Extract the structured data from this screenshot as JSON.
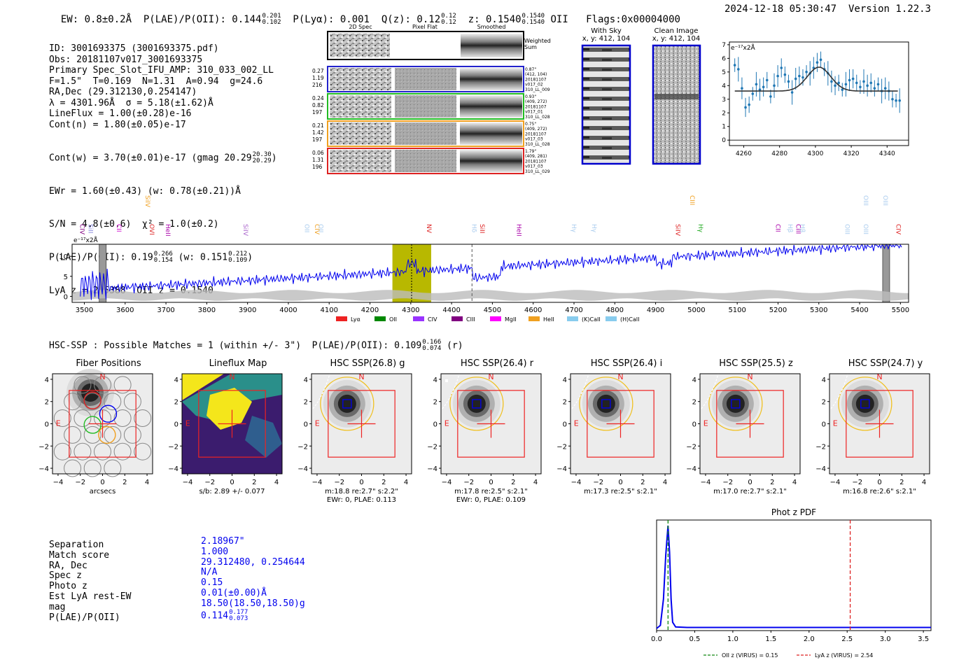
{
  "header": {
    "ew": "EW: 0.8±0.2Å",
    "plae_label": "P(LAE)/P(OII): 0.144",
    "plae_hi": "0.201",
    "plae_lo": "0.102",
    "plya": "P(Lyα): 0.001",
    "qz_label": "Q(z): 0.12",
    "qz_hi": "0.12",
    "qz_lo": "0.12",
    "z_label": "z: 0.1540",
    "z_hi": "0.1540",
    "z_lo": "0.1540",
    "z_line": "OII",
    "flags": "Flags:0x00004000",
    "timestamp": "2024-12-18 05:30:47",
    "version": "Version 1.22.3"
  },
  "info": {
    "lines": [
      "ID: 3001693375 (3001693375.pdf)",
      "Obs: 20181107v017_3001693375",
      "Primary Spec_Slot_IFU_AMP: 310_033_002_LL",
      "F=1.5\"  T=0.169  N=1.31  A=0.94  g=24.6",
      "RA,Dec (29.312130,0.254147)",
      "λ = 4301.96Å  σ = 5.18(±1.62)Å",
      "LineFlux = 1.00(±0.28)e-16",
      "Cont(n) = 1.80(±0.05)e-17"
    ],
    "contw_label": "Cont(w) = 3.70(±0.01)e-17 (gmag 20.29",
    "contw_hi": "20.30",
    "contw_lo": "20.29",
    "ewr": "EWr = 1.60(±0.43) (w: 0.78(±0.21))Å",
    "sn": "S/N = 4.8(±0.6)  χ² = 1.0(±0.2)",
    "plae_label": "P(LAE)/P(OII): 0.19",
    "plae_hi": "0.266",
    "plae_lo": "0.154",
    "plae_w": "(w: 0.151",
    "plae_w_hi": "0.212",
    "plae_w_lo": "0.109",
    "lya": "LyA z = 2.5388  OII z = 0.1540"
  },
  "cutouts": {
    "col_2d": "2D Spec",
    "col_flat": "Pixel Flat",
    "col_smooth": "Smoothed",
    "weighted": "Weighted Sum",
    "rows": [
      {
        "left": [
          "0.27",
          "1.19",
          "216"
        ],
        "right": [
          "0.87\"",
          "(412, 104)",
          "20181107",
          "v017_02",
          "310_LL_009"
        ],
        "color": "#2222cc"
      },
      {
        "left": [
          "0.24",
          "0.82",
          "197"
        ],
        "right": [
          "0.93\"",
          "(409, 272)",
          "20181107",
          "v017_01",
          "310_LL_028"
        ],
        "color": "#22bb22"
      },
      {
        "left": [
          "0.21",
          "1.42",
          "197"
        ],
        "right": [
          "0.75\"",
          "(409, 272)",
          "20181107",
          "v017_03",
          "310_LL_028"
        ],
        "color": "#f0a020"
      },
      {
        "left": [
          "0.06",
          "1.31",
          "196"
        ],
        "right": [
          "1.79\"",
          "(409, 281)",
          "20181107",
          "v017_03",
          "310_LL_029"
        ],
        "color": "#dd2222"
      }
    ]
  },
  "sky": {
    "with_sky": "With Sky",
    "with_sky_xy": "x, y: 412, 104",
    "clean": "Clean Image",
    "clean_xy": "x, y: 412, 104"
  },
  "zoom_plot": {
    "unit": "e⁻¹⁷x2Å",
    "yticks": [
      "0",
      "1",
      "2",
      "3",
      "4",
      "5",
      "6",
      "7"
    ],
    "xticks": [
      "4260",
      "4280",
      "4300",
      "4320",
      "4340"
    ],
    "xmin": 4252,
    "xmax": 4352,
    "ymin": -0.4,
    "ymax": 7.2,
    "points": [
      [
        4255,
        5.5
      ],
      [
        4257,
        5.2
      ],
      [
        4259,
        3.8
      ],
      [
        4261,
        2.4
      ],
      [
        4263,
        2.6
      ],
      [
        4265,
        3.4
      ],
      [
        4267,
        4.1
      ],
      [
        4269,
        3.7
      ],
      [
        4271,
        3.9
      ],
      [
        4273,
        4.4
      ],
      [
        4275,
        3.2
      ],
      [
        4277,
        4.0
      ],
      [
        4279,
        4.7
      ],
      [
        4281,
        5.3
      ],
      [
        4283,
        4.8
      ],
      [
        4285,
        4.3
      ],
      [
        4287,
        3.5
      ],
      [
        4289,
        4.5
      ],
      [
        4291,
        4.7
      ],
      [
        4293,
        4.6
      ],
      [
        4295,
        5.0
      ],
      [
        4297,
        4.9
      ],
      [
        4299,
        5.3
      ],
      [
        4301,
        5.7
      ],
      [
        4303,
        5.9
      ],
      [
        4305,
        5.2
      ],
      [
        4307,
        4.9
      ],
      [
        4309,
        4.3
      ],
      [
        4311,
        4.0
      ],
      [
        4313,
        4.2
      ],
      [
        4315,
        3.7
      ],
      [
        4317,
        4.1
      ],
      [
        4319,
        4.4
      ],
      [
        4321,
        4.5
      ],
      [
        4323,
        4.2
      ],
      [
        4325,
        3.9
      ],
      [
        4327,
        4.3
      ],
      [
        4329,
        4.0
      ],
      [
        4331,
        4.2
      ],
      [
        4333,
        3.8
      ],
      [
        4335,
        4.1
      ],
      [
        4337,
        3.6
      ],
      [
        4339,
        3.8
      ],
      [
        4341,
        3.6
      ],
      [
        4343,
        3.0
      ],
      [
        4345,
        2.9
      ],
      [
        4347,
        2.9
      ]
    ],
    "continuum": 3.6,
    "peak": 1.75,
    "center": 4302,
    "sigma": 5.18,
    "fit_start": 4255,
    "fit_end": 4346
  },
  "full_spectrum": {
    "unit": "e⁻¹⁷x2Å",
    "yticks": [
      "0",
      "5",
      "10"
    ],
    "xticks": [
      "3500",
      "3600",
      "3700",
      "3800",
      "3900",
      "4000",
      "4100",
      "4200",
      "4300",
      "4400",
      "4500",
      "4600",
      "4700",
      "4800",
      "4900",
      "5000",
      "5100",
      "5200",
      "5300",
      "5400",
      "5500"
    ],
    "xmin": 3470,
    "xmax": 5520,
    "ymin": -1.5,
    "ymax": 13,
    "highlight": [
      4255,
      4350
    ],
    "line_center": 4302,
    "dashed_line": 4450,
    "gray_bars": [
      3545,
      5465
    ],
    "line_labels": [
      {
        "w": 3490,
        "t": "CIV",
        "c": "#800080",
        "row": 1
      },
      {
        "w": 3510,
        "t": "SiII",
        "c": "#8888dd",
        "row": 1
      },
      {
        "w": 3580,
        "t": "CII",
        "c": "#cc00cc",
        "row": 1
      },
      {
        "w": 3650,
        "t": "SiIV",
        "c": "#f0a020",
        "row": 0
      },
      {
        "w": 3660,
        "t": "OVI",
        "c": "#dd2222",
        "row": 1
      },
      {
        "w": 3700,
        "t": "HeII",
        "c": "#aa00aa",
        "row": 1
      },
      {
        "w": 3890,
        "t": "SiIV",
        "c": "#aa66cc",
        "row": 1
      },
      {
        "w": 4040,
        "t": "OII",
        "c": "#aaccee",
        "row": 1
      },
      {
        "w": 4065,
        "t": "CIV",
        "c": "#f0a020",
        "row": 1
      },
      {
        "w": 4075,
        "t": "OII",
        "c": "#aaccee",
        "row": 1
      },
      {
        "w": 4340,
        "t": "NV",
        "c": "#dd2222",
        "row": 1
      },
      {
        "w": 4450,
        "t": "Hδ",
        "c": "#aaccee",
        "row": 1
      },
      {
        "w": 4470,
        "t": "SiII",
        "c": "#dd2222",
        "row": 1
      },
      {
        "w": 4560,
        "t": "HeII",
        "c": "#aa00aa",
        "row": 1
      },
      {
        "w": 4695,
        "t": "Hγ",
        "c": "#aaccee",
        "row": 1
      },
      {
        "w": 4745,
        "t": "Hγ",
        "c": "#aaccee",
        "row": 1
      },
      {
        "w": 4950,
        "t": "SiIV",
        "c": "#dd2222",
        "row": 1
      },
      {
        "w": 4985,
        "t": "CIII",
        "c": "#f0a020",
        "row": 0
      },
      {
        "w": 5005,
        "t": "Hγ",
        "c": "#22aa22",
        "row": 1
      },
      {
        "w": 5195,
        "t": "CII",
        "c": "#aa00aa",
        "row": 1
      },
      {
        "w": 5225,
        "t": "Hβ",
        "c": "#aaccee",
        "row": 1
      },
      {
        "w": 5245,
        "t": "CIII",
        "c": "#aa00aa",
        "row": 1
      },
      {
        "w": 5255,
        "t": "Hβ",
        "c": "#aaccee",
        "row": 1
      },
      {
        "w": 5365,
        "t": "OIII",
        "c": "#aaccee",
        "row": 1
      },
      {
        "w": 5410,
        "t": "OIII",
        "c": "#aaccee",
        "row": 0
      },
      {
        "w": 5410,
        "t": "OIII",
        "c": "#aaccee",
        "row": 1
      },
      {
        "w": 5458,
        "t": "OIII",
        "c": "#aaccee",
        "row": 0
      },
      {
        "w": 5490,
        "t": "CIV",
        "c": "#dd2222",
        "row": 1
      }
    ],
    "legend": [
      {
        "t": "Lyα",
        "c": "#ee2222"
      },
      {
        "t": "OII",
        "c": "#008800"
      },
      {
        "t": "CIV",
        "c": "#9933ff"
      },
      {
        "t": "CIII",
        "c": "#800080"
      },
      {
        "t": "MgII",
        "c": "#ff00ff"
      },
      {
        "t": "HeII",
        "c": "#f0a020"
      },
      {
        "t": "(K)CaII",
        "c": "#88ccee"
      },
      {
        "t": "(H)CaII",
        "c": "#88ccee"
      }
    ]
  },
  "hsc": {
    "label": "HSC-SSP : Possible Matches = 1 (within +/- 3\")  P(LAE)/P(OII): 0.109",
    "hi": "0.166",
    "lo": "0.074",
    "band": "(r)",
    "xticks": [
      "−4",
      "−2",
      "0",
      "2",
      "4"
    ],
    "yticks": [
      "4",
      "2",
      "0",
      "−2",
      "−4"
    ],
    "north": "N",
    "east": "E",
    "panels": [
      {
        "title": "Fiber Positions",
        "cap1": "arcsecs",
        "cap2": ""
      },
      {
        "title": "Lineflux Map",
        "cap1": "s/b: 2.89 +/- 0.077",
        "cap2": ""
      },
      {
        "title": "HSC SSP(26.8) g",
        "cap1": "m:18.8  re:2.7\"  s:2.2\"",
        "cap2": "EWr: 0, PLAE: 0.113"
      },
      {
        "title": "HSC SSP(26.4) r",
        "cap1": "m:17.8  re:2.5\"  s:2.1\"",
        "cap2": "EWr: 0, PLAE: 0.109"
      },
      {
        "title": "HSC SSP(26.4) i",
        "cap1": "m:17.3  re:2.5\"  s:2.1\"",
        "cap2": ""
      },
      {
        "title": "HSC SSP(25.5) z",
        "cap1": "m:17.0  re:2.7\"  s:2.1\"",
        "cap2": ""
      },
      {
        "title": "HSC SSP(24.7) y",
        "cap1": "m:16.8  re:2.6\"  s:2.1\"",
        "cap2": ""
      }
    ]
  },
  "match": {
    "labels": [
      "Separation",
      "Match score",
      "RA, Dec",
      "Spec z",
      "Photo z",
      "Est LyA rest-EW",
      "mag",
      "P(LAE)/P(OII)"
    ],
    "values": [
      "2.18967\"",
      "1.000",
      "29.312480, 0.254644",
      "N/A",
      "0.15",
      "0.01(±0.00)Å",
      "18.50(18.50,18.50)g",
      "0.114"
    ],
    "plae_hi": "0.177",
    "plae_lo": "0.073"
  },
  "photz": {
    "title": "Phot z PDF",
    "xticks": [
      "0.0",
      "0.5",
      "1.0",
      "1.5",
      "2.0",
      "2.5",
      "3.0",
      "3.5"
    ],
    "xmin": 0,
    "xmax": 3.6,
    "oii_z": 0.15,
    "lya_z": 2.54,
    "legend_oii": "OII z (VIRUS) = 0.15",
    "legend_lya": "LyA z (VIRUS) = 2.54",
    "pdf": [
      [
        0,
        0.02
      ],
      [
        0.05,
        0.05
      ],
      [
        0.09,
        0.3
      ],
      [
        0.12,
        0.72
      ],
      [
        0.15,
        1.0
      ],
      [
        0.17,
        0.75
      ],
      [
        0.19,
        0.3
      ],
      [
        0.21,
        0.08
      ],
      [
        0.25,
        0.035
      ],
      [
        0.4,
        0.03
      ],
      [
        1.0,
        0.03
      ],
      [
        2.0,
        0.03
      ],
      [
        3.6,
        0.03
      ]
    ]
  }
}
